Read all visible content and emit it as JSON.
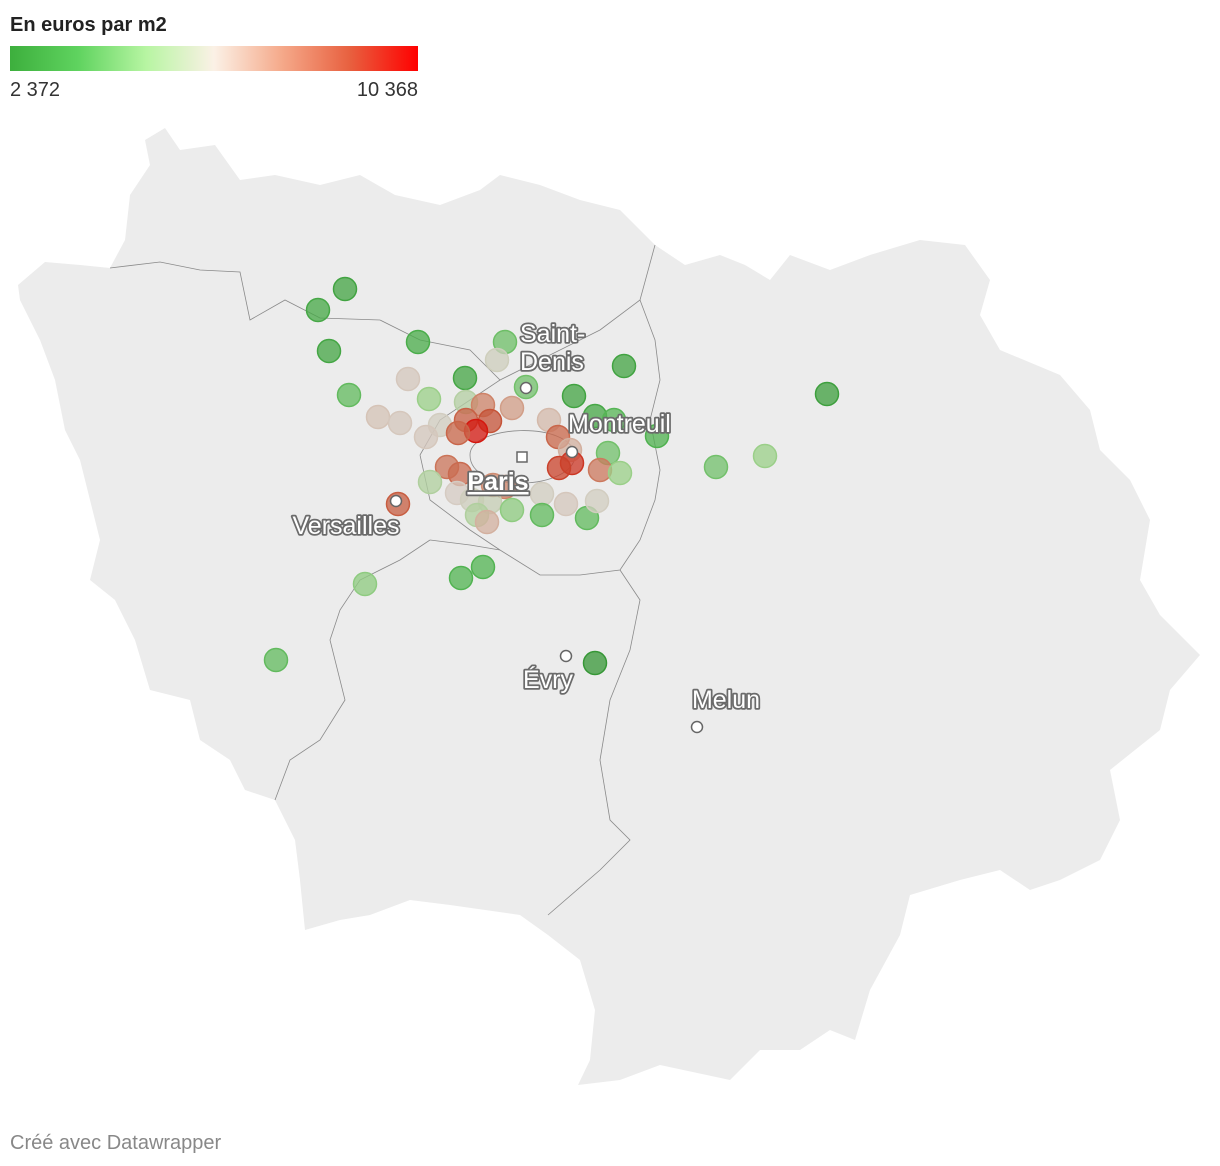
{
  "legend": {
    "title": "En euros par m2",
    "min": {
      "value": 2372,
      "label": "2 372"
    },
    "max": {
      "value": 10368,
      "label": "10 368"
    },
    "colors": [
      "#3daf3d",
      "#5fd35f",
      "#b7f5a2",
      "#fbf1e6",
      "#f5a98a",
      "#e8603f",
      "#ff0000"
    ]
  },
  "cities": [
    {
      "lines": [
        "Saint-",
        "Denis"
      ]
    },
    {
      "lines": [
        "Montreuil"
      ]
    },
    {
      "lines": [
        "Paris"
      ]
    },
    {
      "lines": [
        "Versailles"
      ]
    },
    {
      "lines": [
        "Évry"
      ]
    },
    {
      "lines": [
        "Melun"
      ]
    }
  ],
  "points": {
    "values": [
      3000,
      3200,
      3100,
      3400,
      4200,
      6200,
      6500,
      3100,
      4300,
      3000,
      3000,
      2800,
      4000,
      5000,
      6600,
      6500,
      6300,
      6500,
      5600,
      8000,
      7400,
      8700,
      9000,
      10000,
      8600,
      6800,
      8600,
      3200,
      3800,
      3600,
      4300,
      7000,
      9500,
      9300,
      8200,
      5000,
      4300,
      5000,
      8300,
      8500,
      5500,
      6400,
      8000,
      7800,
      6200,
      6000,
      6300,
      5500,
      4800,
      4000,
      4000,
      6500,
      6300,
      7000,
      8800,
      4800,
      3700,
      3700,
      4000,
      2500
    ]
  },
  "footer": "Créé avec Datawrapper"
}
